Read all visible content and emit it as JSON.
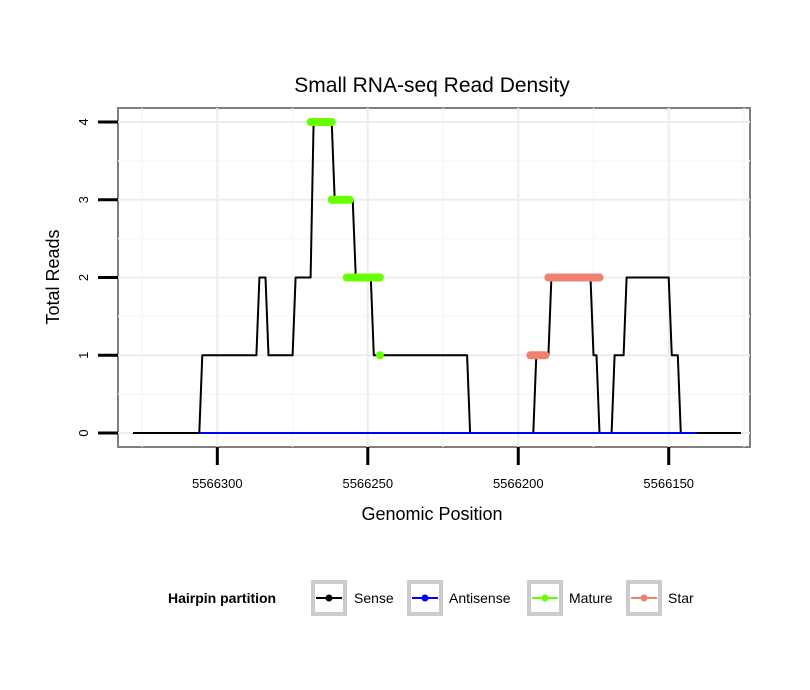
{
  "chart_data": {
    "type": "line",
    "title": "Small RNA-seq Read Density",
    "xlabel": "Genomic Position",
    "ylabel": "Total Reads",
    "xlim": [
      5566333,
      5566123
    ],
    "ylim": [
      -0.18,
      4.18
    ],
    "x_reversed": true,
    "x_ticks": [
      5566300,
      5566250,
      5566200,
      5566150
    ],
    "x_tick_labels": [
      "5566300",
      "5566250",
      "5566200",
      "5566150"
    ],
    "y_ticks": [
      0,
      1,
      2,
      3,
      4
    ],
    "y_tick_labels": [
      "0",
      "1",
      "2",
      "3",
      "4"
    ],
    "grid": true,
    "legend": {
      "title": "Hairpin partition",
      "position": "bottom",
      "entries": [
        {
          "name": "Sense",
          "color": "#000000"
        },
        {
          "name": "Antisense",
          "color": "#0000ff"
        },
        {
          "name": "Mature",
          "color": "#66ff00"
        },
        {
          "name": "Star",
          "color": "#f08070"
        }
      ]
    },
    "series": [
      {
        "name": "Sense",
        "color": "#000000",
        "kind": "line",
        "x": [
          5566328,
          5566306,
          5566305,
          5566287,
          5566286,
          5566284,
          5566283,
          5566275,
          5566274,
          5566269,
          5566268,
          5566262,
          5566261,
          5566255,
          5566254,
          5566249,
          5566248,
          5566217,
          5566216,
          5566195,
          5566194,
          5566190,
          5566189,
          5566176,
          5566175,
          5566174,
          5566173,
          5566169,
          5566168,
          5566165,
          5566164,
          5566150,
          5566149,
          5566147,
          5566146,
          5566141,
          5566140,
          5566126
        ],
        "y": [
          0,
          0,
          1,
          1,
          2,
          2,
          1,
          1,
          2,
          2,
          4,
          4,
          3,
          3,
          2,
          2,
          1,
          1,
          0,
          0,
          1,
          1,
          2,
          2,
          1,
          1,
          0,
          0,
          1,
          1,
          2,
          2,
          1,
          1,
          0,
          0,
          0,
          0
        ]
      },
      {
        "name": "Antisense",
        "color": "#0000ff",
        "kind": "line",
        "x": [
          5566306,
          5566141
        ],
        "y": [
          0,
          0
        ]
      },
      {
        "name": "Mature",
        "color": "#66ff00",
        "kind": "segments",
        "segments": [
          {
            "x0": 5566269,
            "x1": 5566262,
            "y": 4
          },
          {
            "x0": 5566262,
            "x1": 5566256,
            "y": 3
          },
          {
            "x0": 5566257,
            "x1": 5566246,
            "y": 2
          },
          {
            "x0": 5566246,
            "x1": 5566246,
            "y": 1
          }
        ]
      },
      {
        "name": "Star",
        "color": "#f08070",
        "kind": "segments",
        "segments": [
          {
            "x0": 5566196,
            "x1": 5566191,
            "y": 1
          },
          {
            "x0": 5566190,
            "x1": 5566173,
            "y": 2
          }
        ]
      }
    ]
  }
}
